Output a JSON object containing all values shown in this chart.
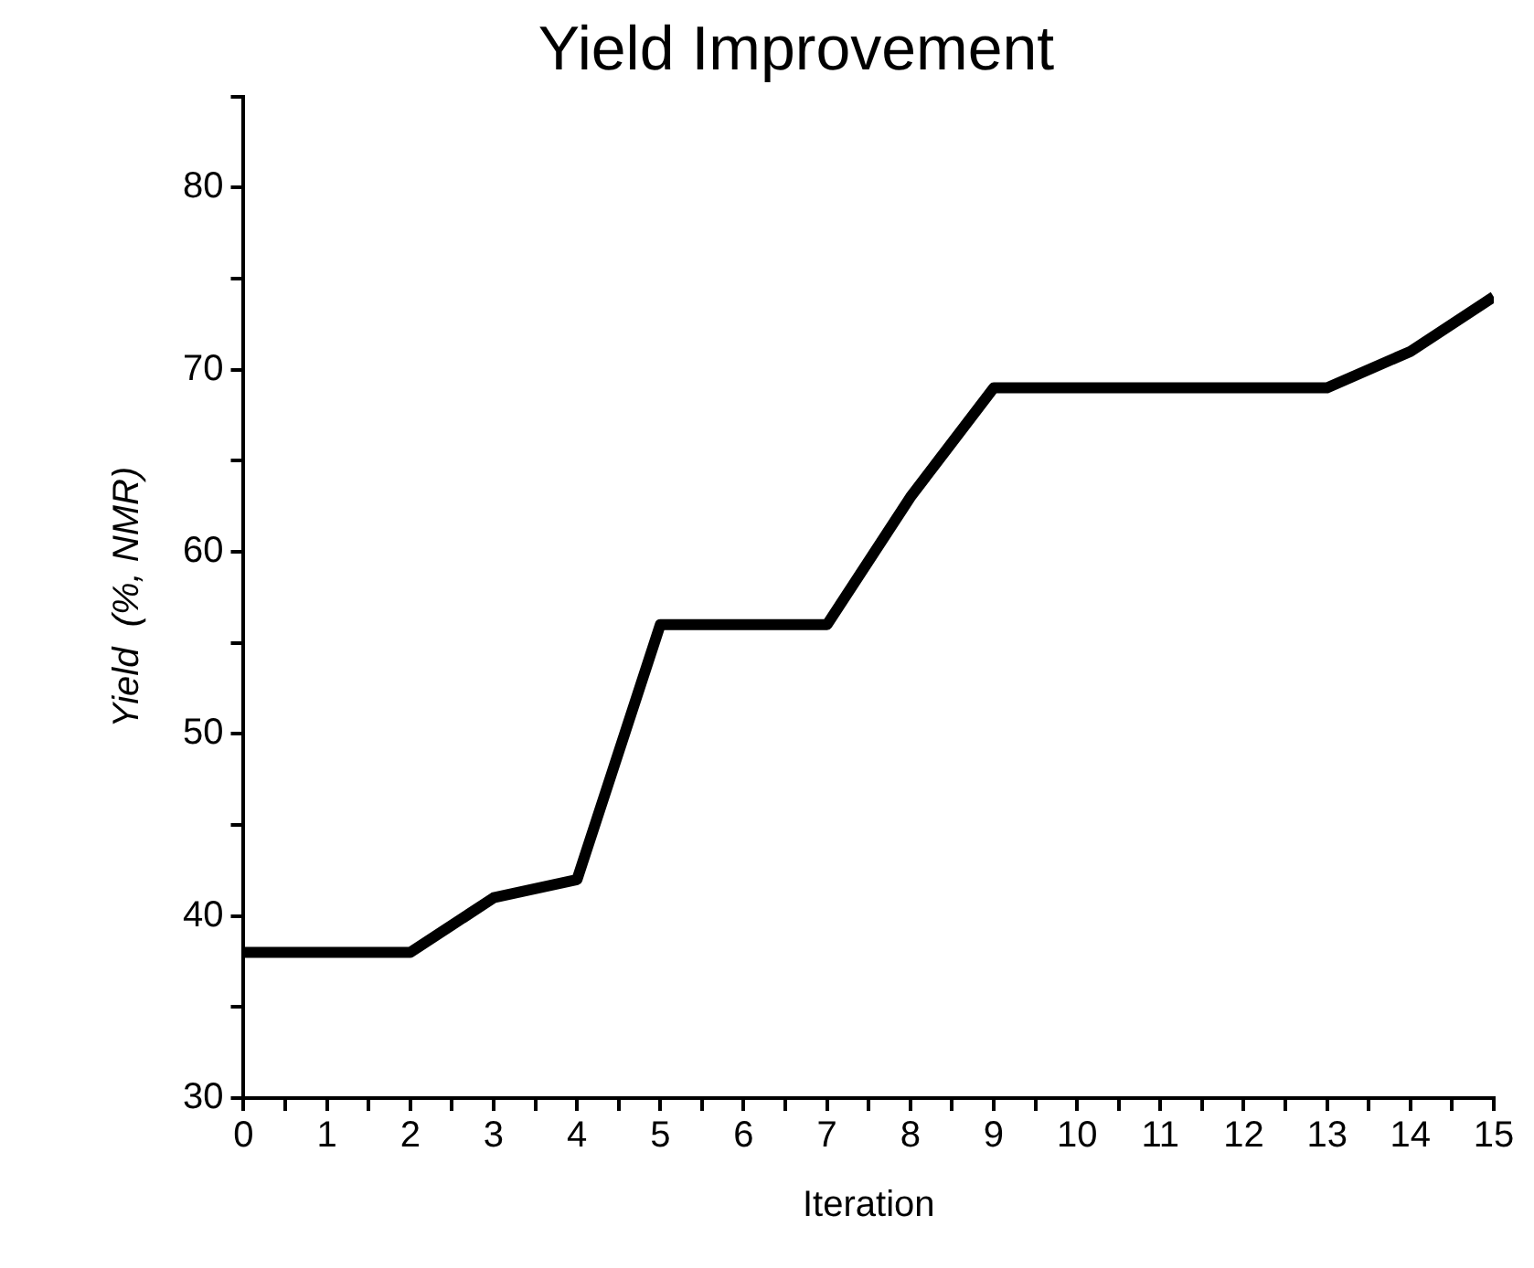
{
  "chart_data": {
    "type": "line",
    "title": "Yield Improvement",
    "xlabel": "Iteration",
    "ylabel": "Yield  (%, NMR)",
    "x": [
      0,
      1,
      2,
      3,
      4,
      5,
      6,
      7,
      8,
      9,
      10,
      11,
      12,
      13,
      14,
      15
    ],
    "series": [
      {
        "color": "#000000",
        "values": [
          38,
          38,
          38,
          41,
          42,
          56,
          56,
          56,
          63,
          69,
          69,
          69,
          69,
          69,
          71,
          74
        ]
      }
    ],
    "xlim": [
      0,
      15
    ],
    "xticks": [
      0,
      {
        "value": 0.5,
        "label": null
      },
      1,
      {
        "value": 1.5,
        "label": null
      },
      2,
      {
        "value": 2.5,
        "label": null
      },
      3,
      {
        "value": 3.5,
        "label": null
      },
      4,
      {
        "value": 4.5,
        "label": null
      },
      5,
      {
        "value": 5.5,
        "label": null
      },
      6,
      {
        "value": 6.5,
        "label": null
      },
      7,
      {
        "value": 7.5,
        "label": null
      },
      8,
      {
        "value": 8.5,
        "label": null
      },
      9,
      {
        "value": 9.5,
        "label": null
      },
      10,
      {
        "value": 10.5,
        "label": null
      },
      11,
      {
        "value": 11.5,
        "label": null
      },
      12,
      {
        "value": 12.5,
        "label": null
      },
      13,
      {
        "value": 13.5,
        "label": null
      },
      14,
      {
        "value": 14.5,
        "label": null
      },
      15
    ],
    "ylim": [
      30,
      85
    ],
    "yticks": [
      30,
      {
        "value": 35,
        "label": null
      },
      40,
      {
        "value": 45,
        "label": null
      },
      50,
      {
        "value": 55,
        "label": null
      },
      60,
      {
        "value": 65,
        "label": null
      },
      70,
      {
        "value": 75,
        "label": null
      },
      80,
      {
        "value": 85,
        "label": null
      }
    ],
    "grid": false,
    "legend": false,
    "marker": "none",
    "line_style": "solid"
  }
}
